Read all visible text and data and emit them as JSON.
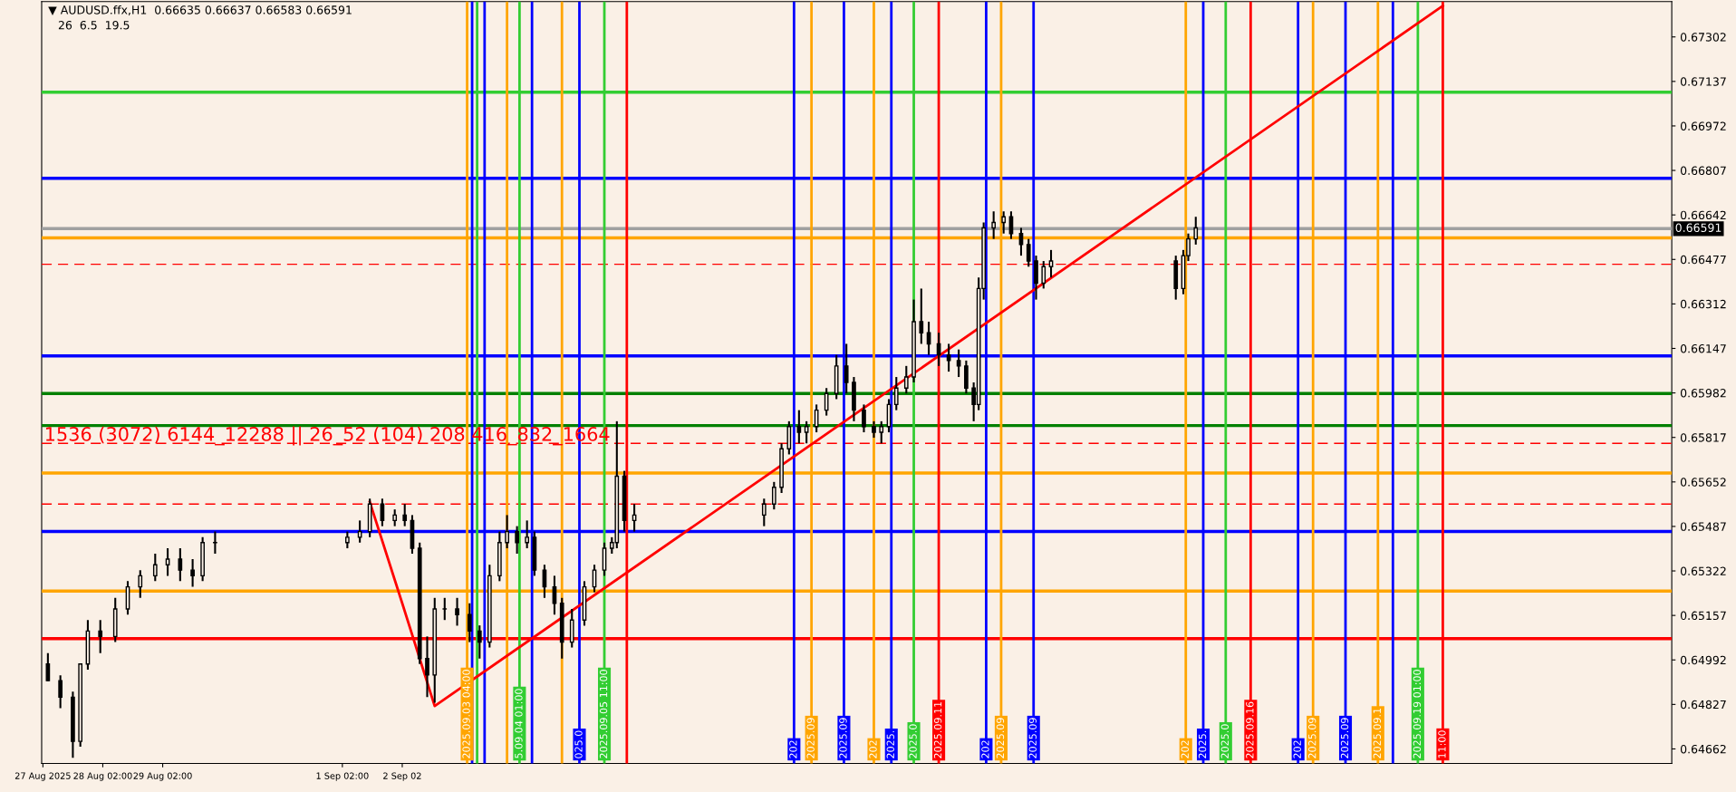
{
  "chart_data": {
    "type": "candlestick",
    "title": "▼ AUDUSD.ffx,H1  0.66635 0.66637 0.66583 0.66591",
    "subtitle": "26  6.5  19.5",
    "annotations": [
      "1536 (3072) 6144_12288 || 26_52 (104) 208 416_832_1664"
    ],
    "x": [
      "2025-08-27T04:00",
      "2025-08-27T09:00",
      "2025-08-27T14:00",
      "2025-08-27T17:00",
      "2025-08-27T20:00",
      "2025-08-28T01:00",
      "2025-08-28T07:00",
      "2025-08-28T12:00",
      "2025-08-28T17:00",
      "2025-08-28T23:00",
      "2025-08-29T04:00",
      "2025-08-29T09:00",
      "2025-08-29T14:00",
      "2025-08-29T18:00",
      "2025-08-29T23:00",
      "2025-09-01T04:00",
      "2025-09-01T09:00",
      "2025-09-01T13:00",
      "2025-09-01T18:00",
      "2025-09-01T23:00",
      "2025-09-02T03:00",
      "2025-09-02T06:00",
      "2025-09-02T09:00",
      "2025-09-02T12:00",
      "2025-09-02T15:00",
      "2025-09-02T19:00",
      "2025-09-03T00:00",
      "2025-09-03T05:00",
      "2025-09-03T09:00",
      "2025-09-03T13:00",
      "2025-09-03T17:00",
      "2025-09-03T20:00",
      "2025-09-04T00:00",
      "2025-09-04T04:00",
      "2025-09-04T07:00",
      "2025-09-04T11:00",
      "2025-09-04T15:00",
      "2025-09-04T18:00",
      "2025-09-04T22:00",
      "2025-09-05T03:00",
      "2025-09-05T07:00",
      "2025-09-05T11:00",
      "2025-09-05T14:00",
      "2025-09-05T16:00",
      "2025-09-05T19:00",
      "2025-09-05T23:00",
      "2025-09-08T03:00",
      "2025-09-08T07:00",
      "2025-09-08T10:00",
      "2025-09-08T13:00",
      "2025-09-08T17:00",
      "2025-09-08T20:00",
      "2025-09-09T00:00",
      "2025-09-09T04:00",
      "2025-09-09T08:00",
      "2025-09-09T12:00",
      "2025-09-09T15:00",
      "2025-09-09T19:00",
      "2025-09-09T23:00",
      "2025-09-10T02:00",
      "2025-09-10T05:00",
      "2025-09-10T08:00",
      "2025-09-10T12:00",
      "2025-09-10T15:00",
      "2025-09-10T18:00",
      "2025-09-10T21:00",
      "2025-09-11T01:00",
      "2025-09-11T05:00",
      "2025-09-11T09:00",
      "2025-09-11T12:00",
      "2025-09-11T15:00",
      "2025-09-11T17:00",
      "2025-09-11T19:00",
      "2025-09-11T23:00",
      "2025-09-12T03:00",
      "2025-09-12T06:00",
      "2025-09-12T10:00",
      "2025-09-12T13:00",
      "2025-09-12T16:00",
      "2025-09-12T19:00",
      "2025-09-12T22:00",
      "2025-09-15T00:00",
      "2025-09-15T03:00",
      "2025-09-15T05:00",
      "2025-09-15T08:00"
    ],
    "ohlc": [
      [
        0.64977,
        0.65017,
        0.64915,
        0.64915
      ],
      [
        0.64915,
        0.64935,
        0.64813,
        0.64854
      ],
      [
        0.64854,
        0.64874,
        0.64629,
        0.6469
      ],
      [
        0.6469,
        0.64977,
        0.6467,
        0.64977
      ],
      [
        0.64977,
        0.6514,
        0.64956,
        0.65099
      ],
      [
        0.65099,
        0.6514,
        0.65017,
        0.65079
      ],
      [
        0.65079,
        0.65222,
        0.65058,
        0.65181
      ],
      [
        0.65181,
        0.65284,
        0.6516,
        0.65263
      ],
      [
        0.65263,
        0.65325,
        0.65222,
        0.65304
      ],
      [
        0.65304,
        0.65386,
        0.65284,
        0.65345
      ],
      [
        0.65345,
        0.65406,
        0.65304,
        0.65366
      ],
      [
        0.65366,
        0.65406,
        0.65284,
        0.65325
      ],
      [
        0.65325,
        0.65366,
        0.65263,
        0.65304
      ],
      [
        0.65304,
        0.65447,
        0.65284,
        0.65427
      ],
      [
        0.65427,
        0.65468,
        0.65386,
        0.65427
      ],
      [
        0.65427,
        0.65468,
        0.65406,
        0.65447
      ],
      [
        0.65447,
        0.65509,
        0.65427,
        0.65468
      ],
      [
        0.65468,
        0.6559,
        0.65447,
        0.6557
      ],
      [
        0.6557,
        0.6559,
        0.65488,
        0.65509
      ],
      [
        0.65509,
        0.6555,
        0.65488,
        0.65529
      ],
      [
        0.65529,
        0.6557,
        0.65488,
        0.65509
      ],
      [
        0.65509,
        0.65529,
        0.65386,
        0.65406
      ],
      [
        0.65406,
        0.65427,
        0.64977,
        0.64997
      ],
      [
        0.64997,
        0.65079,
        0.64854,
        0.64936
      ],
      [
        0.64936,
        0.65222,
        0.64833,
        0.65181
      ],
      [
        0.65181,
        0.65222,
        0.6514,
        0.65181
      ],
      [
        0.65181,
        0.65222,
        0.65119,
        0.6516
      ],
      [
        0.6516,
        0.65202,
        0.65058,
        0.65099
      ],
      [
        0.65099,
        0.6512,
        0.64997,
        0.65058
      ],
      [
        0.65058,
        0.65345,
        0.65038,
        0.65304
      ],
      [
        0.65304,
        0.65468,
        0.65284,
        0.65427
      ],
      [
        0.65427,
        0.65529,
        0.65406,
        0.65468
      ],
      [
        0.65468,
        0.65488,
        0.65386,
        0.65427
      ],
      [
        0.65427,
        0.65509,
        0.65406,
        0.65447
      ],
      [
        0.65447,
        0.65468,
        0.65304,
        0.65325
      ],
      [
        0.65325,
        0.65345,
        0.65222,
        0.65263
      ],
      [
        0.65263,
        0.65304,
        0.6516,
        0.65202
      ],
      [
        0.65202,
        0.65222,
        0.64997,
        0.65058
      ],
      [
        0.65058,
        0.65181,
        0.65038,
        0.6514
      ],
      [
        0.6514,
        0.65284,
        0.65119,
        0.65263
      ],
      [
        0.65263,
        0.65345,
        0.65243,
        0.65325
      ],
      [
        0.65325,
        0.65427,
        0.65304,
        0.65406
      ],
      [
        0.65406,
        0.65447,
        0.65386,
        0.65427
      ],
      [
        0.65427,
        0.65877,
        0.65406,
        0.65673
      ],
      [
        0.65673,
        0.65693,
        0.65468,
        0.65509
      ],
      [
        0.65509,
        0.6557,
        0.65468,
        0.65529
      ],
      [
        0.65529,
        0.6559,
        0.65488,
        0.6557
      ],
      [
        0.6557,
        0.65652,
        0.6555,
        0.65632
      ],
      [
        0.65632,
        0.65795,
        0.65611,
        0.65775
      ],
      [
        0.65775,
        0.65877,
        0.65754,
        0.65857
      ],
      [
        0.65857,
        0.65918,
        0.65795,
        0.65836
      ],
      [
        0.65836,
        0.65877,
        0.65795,
        0.65857
      ],
      [
        0.65857,
        0.65939,
        0.65836,
        0.65918
      ],
      [
        0.65918,
        0.66,
        0.65898,
        0.6598
      ],
      [
        0.6598,
        0.66123,
        0.65959,
        0.66082
      ],
      [
        0.66082,
        0.66164,
        0.6598,
        0.66021
      ],
      [
        0.66021,
        0.66041,
        0.65877,
        0.65918
      ],
      [
        0.65918,
        0.65939,
        0.65836,
        0.65857
      ],
      [
        0.65857,
        0.65877,
        0.65816,
        0.65836
      ],
      [
        0.65836,
        0.65877,
        0.65795,
        0.65857
      ],
      [
        0.65857,
        0.65959,
        0.65836,
        0.65939
      ],
      [
        0.65939,
        0.66041,
        0.65918,
        0.66
      ],
      [
        0.66,
        0.66082,
        0.6598,
        0.66041
      ],
      [
        0.66041,
        0.66328,
        0.66021,
        0.66246
      ],
      [
        0.66246,
        0.66369,
        0.66164,
        0.66205
      ],
      [
        0.66205,
        0.66246,
        0.66123,
        0.66164
      ],
      [
        0.66164,
        0.66205,
        0.66082,
        0.66123
      ],
      [
        0.66123,
        0.66164,
        0.66061,
        0.66102
      ],
      [
        0.66102,
        0.66143,
        0.66041,
        0.66082
      ],
      [
        0.66082,
        0.66102,
        0.6598,
        0.66
      ],
      [
        0.66,
        0.66021,
        0.65877,
        0.65939
      ],
      [
        0.65939,
        0.6641,
        0.65918,
        0.66369
      ],
      [
        0.66369,
        0.66614,
        0.66328,
        0.66594
      ],
      [
        0.66594,
        0.66655,
        0.66553,
        0.66614
      ],
      [
        0.66614,
        0.66655,
        0.66573,
        0.66635
      ],
      [
        0.66635,
        0.66655,
        0.66553,
        0.66573
      ],
      [
        0.66573,
        0.66594,
        0.66491,
        0.66532
      ],
      [
        0.66532,
        0.66553,
        0.6645,
        0.66471
      ],
      [
        0.66471,
        0.66491,
        0.66328,
        0.66389
      ],
      [
        0.66389,
        0.66471,
        0.66369,
        0.6645
      ],
      [
        0.6645,
        0.66512,
        0.6641,
        0.66471
      ],
      [
        0.66471,
        0.66491,
        0.66328,
        0.66369
      ],
      [
        0.66369,
        0.66512,
        0.66348,
        0.66491
      ],
      [
        0.66491,
        0.66573,
        0.66471,
        0.66553
      ],
      [
        0.66553,
        0.66635,
        0.66532,
        0.66594
      ]
    ],
    "color": "#000000",
    "series": [
      {
        "type": "line",
        "color": "#ff0000",
        "x": [
          "2025-09-01T13:00",
          "2025-09-02T02:00",
          "2025-09-02T15:00",
          "2025-09-19T11:00"
        ],
        "values": [
          0.65578,
          0.65202,
          0.64821,
          0.67417
        ]
      }
    ],
    "xlim": [
      "2025-08-27T01:30",
      "2025-09-23T06:45"
    ],
    "xticks": [
      {
        "value": "2025-08-27T02:00",
        "label": "27 Aug 2025"
      },
      {
        "value": "2025-08-28T02:00",
        "label": "28 Aug 02:00"
      },
      {
        "value": "2025-08-29T02:00",
        "label": "29 Aug 02:00"
      },
      {
        "value": "2025-09-01T02:00",
        "label": "1 Sep 02:00"
      },
      {
        "value": "2025-09-02T02:00",
        "label": "2 Sep 02"
      }
    ],
    "ylim": [
      0.64608,
      0.67433
    ],
    "yticks": [
      0.64662,
      0.64827,
      0.64992,
      0.65157,
      0.65322,
      0.65487,
      0.65652,
      0.65817,
      0.65982,
      0.66147,
      0.66312,
      0.66477,
      0.66642,
      0.66807,
      0.66972,
      0.67137,
      0.67302
    ],
    "grid": false,
    "ref_lines": [
      {
        "axis": "y",
        "value": 0.67097,
        "label": null,
        "color": "#32cd32"
      },
      {
        "axis": "y",
        "value": 0.66778,
        "label": null,
        "color": "#0000ff"
      },
      {
        "axis": "y",
        "value": 0.66591,
        "label": "0.66591",
        "color": "#a0a0a0"
      },
      {
        "axis": "y",
        "value": 0.66557,
        "label": null,
        "color": "#ffa500"
      },
      {
        "axis": "y",
        "value": 0.66459,
        "label": null,
        "color": "#ff0000",
        "line_style": "dashed"
      },
      {
        "axis": "y",
        "value": 0.66119,
        "label": null,
        "color": "#0000ff"
      },
      {
        "axis": "y",
        "value": 0.6598,
        "label": null,
        "color": "#008000"
      },
      {
        "axis": "y",
        "value": 0.65861,
        "label": null,
        "color": "#008000"
      },
      {
        "axis": "y",
        "value": 0.65795,
        "label": null,
        "color": "#ff0000",
        "line_style": "dashed"
      },
      {
        "axis": "y",
        "value": 0.65685,
        "label": null,
        "color": "#ffa500"
      },
      {
        "axis": "y",
        "value": 0.6557,
        "label": null,
        "color": "#ff0000",
        "line_style": "dashed"
      },
      {
        "axis": "y",
        "value": 0.65468,
        "label": null,
        "color": "#0000ff"
      },
      {
        "axis": "y",
        "value": 0.65247,
        "label": null,
        "color": "#ffa500"
      },
      {
        "axis": "y",
        "value": 0.65071,
        "label": null,
        "color": "#ff0000"
      },
      {
        "axis": "x",
        "value": "2025-09-03T04:00",
        "label": "2025.09.03 04:00",
        "color": "#ffa500"
      },
      {
        "axis": "x",
        "value": "2025-09-03T06:00",
        "label": null,
        "color": "#0000ff"
      },
      {
        "axis": "x",
        "value": "2025-09-03T08:00",
        "label": null,
        "color": "#32cd32"
      },
      {
        "axis": "x",
        "value": "2025-09-03T11:00",
        "label": null,
        "color": "#0000ff"
      },
      {
        "axis": "x",
        "value": "2025-09-03T20:00",
        "label": null,
        "color": "#ffa500"
      },
      {
        "axis": "x",
        "value": "2025-09-04T01:00",
        "label": "5.09.04 01:00",
        "color": "#32cd32"
      },
      {
        "axis": "x",
        "value": "2025-09-04T06:00",
        "label": null,
        "color": "#0000ff"
      },
      {
        "axis": "x",
        "value": "2025-09-04T18:00",
        "label": null,
        "color": "#ffa500"
      },
      {
        "axis": "x",
        "value": "2025-09-05T01:00",
        "label": "025.0",
        "color": "#0000ff"
      },
      {
        "axis": "x",
        "value": "2025-09-05T11:00",
        "label": "2025.09.05 11:00",
        "color": "#32cd32"
      },
      {
        "axis": "x",
        "value": "2025-09-05T20:00",
        "label": null,
        "color": "#ff0000"
      },
      {
        "axis": "x",
        "value": "2025-09-08T15:00",
        "label": "202",
        "color": "#0000ff"
      },
      {
        "axis": "x",
        "value": "2025-09-08T22:00",
        "label": "2025.09",
        "color": "#ffa500"
      },
      {
        "axis": "x",
        "value": "2025-09-09T11:00",
        "label": "2025.09",
        "color": "#0000ff"
      },
      {
        "axis": "x",
        "value": "2025-09-09T23:00",
        "label": "202",
        "color": "#ffa500"
      },
      {
        "axis": "x",
        "value": "2025-09-10T06:00",
        "label": "2025.",
        "color": "#0000ff"
      },
      {
        "axis": "x",
        "value": "2025-09-10T15:00",
        "label": "2025.0",
        "color": "#32cd32"
      },
      {
        "axis": "x",
        "value": "2025-09-11T01:00",
        "label": "2025.09.11",
        "color": "#ff0000"
      },
      {
        "axis": "x",
        "value": "2025-09-11T20:00",
        "label": "202",
        "color": "#0000ff"
      },
      {
        "axis": "x",
        "value": "2025-09-12T02:00",
        "label": "2025.09",
        "color": "#ffa500"
      },
      {
        "axis": "x",
        "value": "2025-09-12T15:00",
        "label": "2025.09",
        "color": "#0000ff"
      },
      {
        "axis": "x",
        "value": "2025-09-15T04:00",
        "label": "202",
        "color": "#ffa500"
      },
      {
        "axis": "x",
        "value": "2025-09-15T11:00",
        "label": "2025.",
        "color": "#0000ff"
      },
      {
        "axis": "x",
        "value": "2025-09-15T20:00",
        "label": "2025.0",
        "color": "#32cd32"
      },
      {
        "axis": "x",
        "value": "2025-09-16T06:00",
        "label": "2025.09.16",
        "color": "#ff0000"
      },
      {
        "axis": "x",
        "value": "2025-09-17T01:00",
        "label": "202",
        "color": "#0000ff"
      },
      {
        "axis": "x",
        "value": "2025-09-17T07:00",
        "label": "2025.09",
        "color": "#ffa500"
      },
      {
        "axis": "x",
        "value": "2025-09-17T20:00",
        "label": "2025.09",
        "color": "#0000ff"
      },
      {
        "axis": "x",
        "value": "2025-09-18T09:00",
        "label": "2025.09.1",
        "color": "#ffa500"
      },
      {
        "axis": "x",
        "value": "2025-09-18T15:00",
        "label": null,
        "color": "#0000ff"
      },
      {
        "axis": "x",
        "value": "2025-09-19T01:00",
        "label": "2025.09.19 01:00",
        "color": "#32cd32"
      },
      {
        "axis": "x",
        "value": "2025-09-19T11:00",
        "label": "11:00",
        "color": "#ff0000"
      }
    ]
  }
}
